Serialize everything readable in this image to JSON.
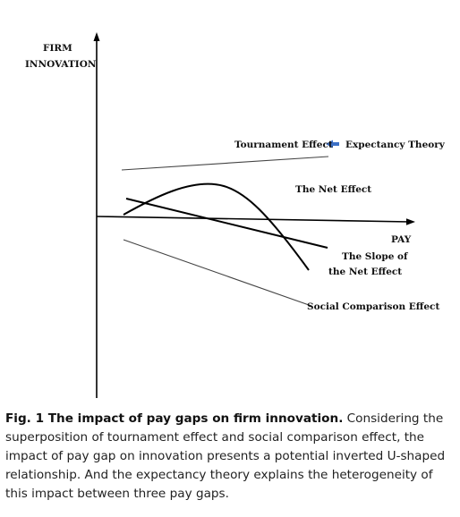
{
  "diagram": {
    "y_axis_label_line1": "FIRM",
    "y_axis_label_line2": "INNOVATION",
    "x_axis_label": "PAY",
    "tournament_effect": "Tournament Effect",
    "expectancy_theory": "Expectancy Theory",
    "net_effect": "The Net Effect",
    "slope_line1": "The Slope of",
    "slope_line2": "the Net Effect",
    "social_comparison_effect": "Social Comparison Effect",
    "arrow_color": "#3b6fc6"
  },
  "caption": {
    "title": "Fig. 1 The impact of pay gaps on firm innovation.",
    "body": " Considering the superposition of tournament effect and social comparison effect, the impact of pay gap on innovation presents a potential inverted U-shaped relationship. And the expectancy theory explains the heterogeneity of this impact between three pay gaps."
  }
}
